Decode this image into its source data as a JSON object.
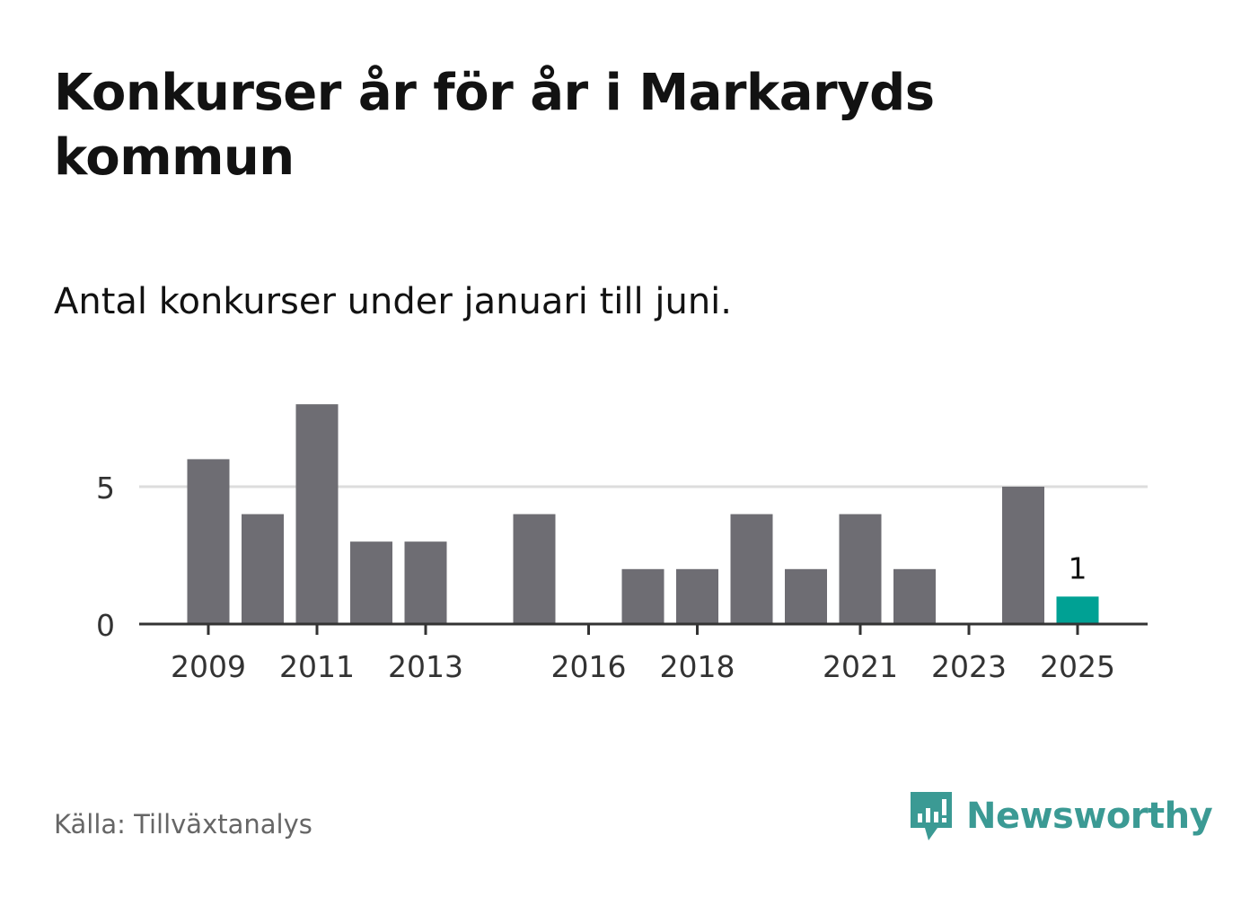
{
  "header": {
    "title": "Konkurser år för år i Markaryds kommun",
    "subtitle": "Antal konkurser under januari till juni."
  },
  "footer": {
    "source": "Källa: Tillväxtanalys",
    "brand": "Newsworthy",
    "brand_icon": "newsworthy-logo-icon"
  },
  "colors": {
    "bar": "#6e6d73",
    "highlight": "#00a194",
    "grid": "#dddddd",
    "axis": "#333333",
    "brand": "#3b9a94"
  },
  "chart_data": {
    "type": "bar",
    "x": [
      2009,
      2010,
      2011,
      2012,
      2013,
      2014,
      2015,
      2016,
      2017,
      2018,
      2019,
      2020,
      2021,
      2022,
      2023,
      2024,
      2025
    ],
    "values": [
      6,
      4,
      8,
      3,
      3,
      0,
      4,
      0,
      2,
      2,
      4,
      2,
      4,
      2,
      0,
      5,
      1
    ],
    "highlight": [
      2025
    ],
    "x_tick_labels": [
      "2009",
      "2011",
      "2013",
      "2016",
      "2018",
      "2021",
      "2023",
      "2025"
    ],
    "y_ticks": [
      0,
      5
    ],
    "data_labels": [
      {
        "x": 2025,
        "label": "1"
      }
    ],
    "ylim": [
      0,
      8
    ],
    "grid": true,
    "xlabel": "",
    "ylabel": ""
  }
}
